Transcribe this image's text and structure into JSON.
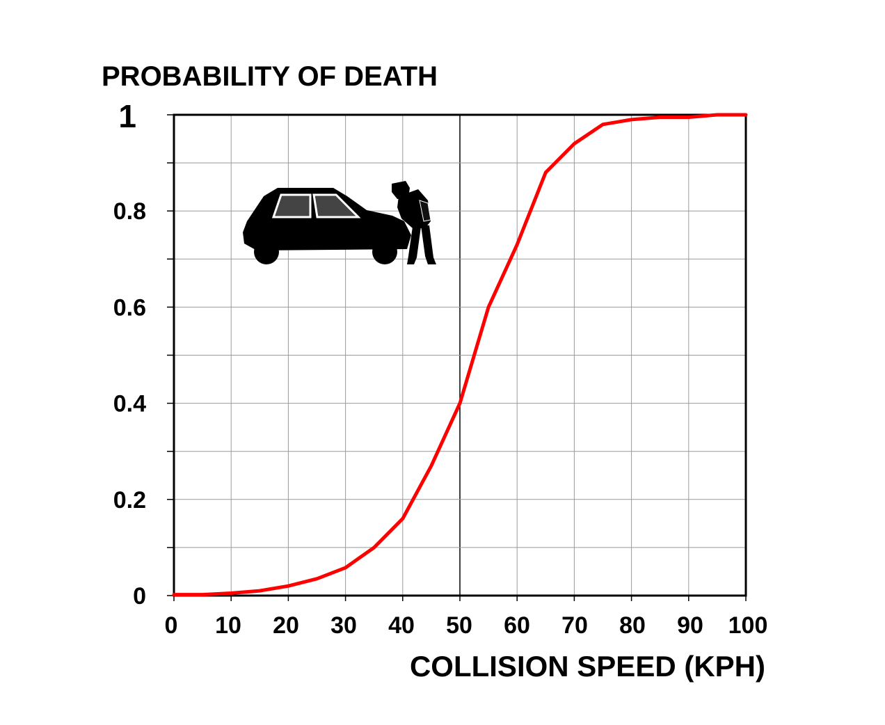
{
  "chart_data": {
    "type": "line",
    "title": "PROBABILITY OF DEATH",
    "xlabel": "COLLISION SPEED (KPH)",
    "ylabel": "",
    "xlim": [
      0,
      100
    ],
    "ylim": [
      0,
      1
    ],
    "x_ticks": [
      "0",
      "10",
      "20",
      "30",
      "40",
      "50",
      "60",
      "70",
      "80",
      "90",
      "100"
    ],
    "y_ticks": [
      "0",
      "0.2",
      "0.4",
      "0.6",
      "0.8",
      "1"
    ],
    "grid": true,
    "series": [
      {
        "color": "#ff0000",
        "x": [
          0,
          5,
          10,
          15,
          20,
          25,
          30,
          35,
          40,
          45,
          50,
          55,
          60,
          65,
          70,
          75,
          80,
          85,
          90,
          95,
          100
        ],
        "y": [
          0.002,
          0.002,
          0.005,
          0.01,
          0.02,
          0.035,
          0.058,
          0.1,
          0.16,
          0.27,
          0.4,
          0.6,
          0.73,
          0.88,
          0.94,
          0.98,
          0.99,
          0.995,
          0.995,
          1.0,
          1.0
        ]
      }
    ],
    "illustration": "car-striking-pedestrian-icon"
  }
}
